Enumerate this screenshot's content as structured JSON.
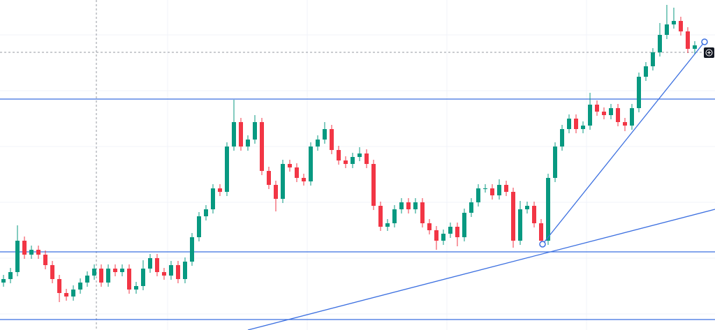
{
  "chart_data": {
    "type": "candlestick",
    "ylim": [
      0,
      473
    ],
    "up_color": "#089981",
    "down_color": "#f23645",
    "level_color": "#3b6fe0",
    "levels": [
      331,
      112,
      15
    ],
    "open": [
      68,
      73,
      83,
      128,
      108,
      115,
      108,
      93,
      73,
      53,
      48,
      58,
      68,
      78,
      88,
      68,
      88,
      83,
      88,
      58,
      63,
      88,
      103,
      83,
      78,
      93,
      73,
      98,
      133,
      163,
      173,
      203,
      198,
      263,
      298,
      263,
      273,
      298,
      228,
      208,
      188,
      238,
      233,
      218,
      213,
      263,
      273,
      288,
      258,
      243,
      238,
      248,
      253,
      238,
      178,
      148,
      153,
      173,
      183,
      173,
      183,
      153,
      143,
      128,
      138,
      148,
      133,
      168,
      183,
      203,
      203,
      193,
      208,
      198,
      128,
      173,
      178,
      153,
      128,
      218,
      263,
      288,
      303,
      288,
      293,
      323,
      313,
      308,
      318,
      298,
      293,
      318,
      363,
      378,
      398,
      423,
      438,
      443,
      428,
      403
    ],
    "high": [
      79,
      89,
      150,
      134,
      121,
      121,
      114,
      99,
      79,
      59,
      64,
      74,
      84,
      94,
      94,
      94,
      94,
      94,
      94,
      69,
      100,
      109,
      109,
      89,
      99,
      99,
      104,
      139,
      169,
      179,
      209,
      209,
      269,
      330,
      304,
      279,
      308,
      304,
      234,
      214,
      244,
      244,
      239,
      224,
      269,
      279,
      298,
      294,
      264,
      249,
      254,
      262,
      259,
      244,
      184,
      159,
      179,
      189,
      189,
      189,
      189,
      159,
      149,
      144,
      154,
      154,
      174,
      189,
      209,
      209,
      209,
      216,
      214,
      204,
      185,
      184,
      184,
      159,
      224,
      269,
      294,
      309,
      309,
      299,
      340,
      329,
      319,
      324,
      324,
      304,
      324,
      369,
      384,
      404,
      440,
      466,
      462,
      449,
      434,
      414
    ],
    "low": [
      62,
      67,
      77,
      102,
      102,
      102,
      87,
      67,
      40,
      42,
      42,
      52,
      62,
      72,
      62,
      62,
      77,
      77,
      52,
      52,
      57,
      82,
      77,
      72,
      72,
      67,
      67,
      92,
      127,
      157,
      167,
      192,
      192,
      257,
      257,
      257,
      267,
      222,
      202,
      170,
      182,
      227,
      212,
      207,
      207,
      257,
      267,
      252,
      237,
      232,
      232,
      242,
      232,
      172,
      142,
      142,
      147,
      167,
      167,
      167,
      147,
      137,
      115,
      122,
      132,
      120,
      127,
      162,
      177,
      197,
      187,
      187,
      192,
      118,
      122,
      167,
      147,
      120,
      122,
      212,
      257,
      282,
      282,
      282,
      287,
      307,
      302,
      302,
      292,
      285,
      287,
      312,
      357,
      372,
      392,
      417,
      432,
      422,
      397,
      395
    ],
    "close": [
      73,
      83,
      128,
      108,
      115,
      108,
      93,
      73,
      53,
      48,
      58,
      68,
      78,
      88,
      68,
      88,
      83,
      88,
      58,
      63,
      88,
      103,
      83,
      78,
      93,
      73,
      98,
      133,
      163,
      173,
      203,
      198,
      263,
      298,
      263,
      273,
      298,
      228,
      208,
      188,
      238,
      233,
      218,
      213,
      263,
      273,
      288,
      258,
      243,
      238,
      248,
      253,
      238,
      178,
      148,
      153,
      173,
      183,
      173,
      183,
      153,
      143,
      128,
      138,
      148,
      133,
      168,
      183,
      203,
      203,
      193,
      208,
      198,
      128,
      173,
      178,
      153,
      128,
      218,
      263,
      288,
      303,
      288,
      293,
      323,
      313,
      308,
      318,
      298,
      293,
      318,
      363,
      378,
      398,
      423,
      438,
      443,
      428,
      403,
      408
    ]
  }
}
